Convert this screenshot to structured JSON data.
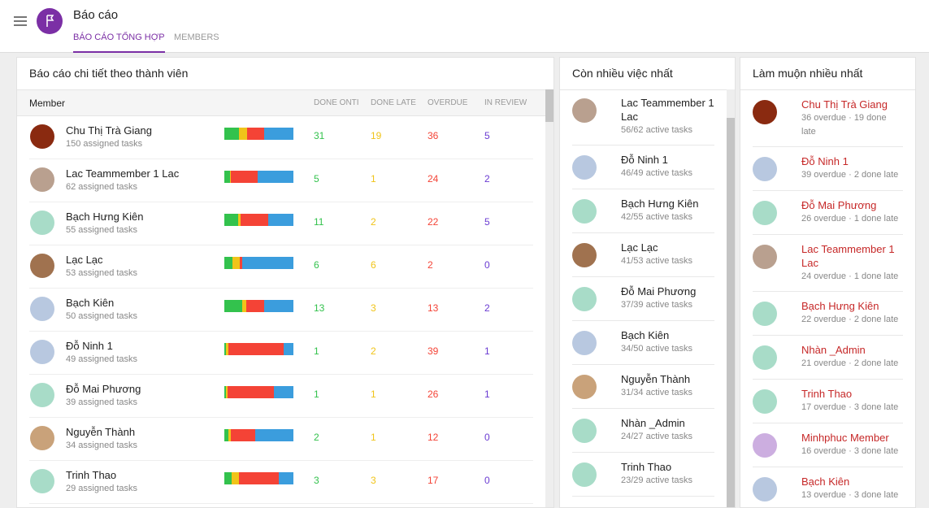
{
  "header": {
    "title": "Báo cáo",
    "tabs": [
      "BÁO CÁO TỔNG HỢP",
      "MEMBERS"
    ]
  },
  "detail": {
    "title": "Báo cáo chi tiết theo thành viên",
    "columns": [
      "Member",
      "DONE ONTI",
      "DONE LATE",
      "OVERDUE",
      "IN REVIEW"
    ],
    "rows": [
      {
        "name": "Chu Thị Trà Giang",
        "tasks": {
          "value": 150,
          "label": "150 assigned tasks"
        },
        "done_on_time": 31,
        "done_late": 19,
        "overdue": 36,
        "in_review": 5
      },
      {
        "name": "Lac Teammember 1 Lac",
        "tasks": {
          "value": 62,
          "label": "62 assigned tasks"
        },
        "done_on_time": 5,
        "done_late": 1,
        "overdue": 24,
        "in_review": 2
      },
      {
        "name": "Bạch Hưng Kiên",
        "tasks": {
          "value": 55,
          "label": "55 assigned tasks"
        },
        "done_on_time": 11,
        "done_late": 2,
        "overdue": 22,
        "in_review": 5
      },
      {
        "name": "Lạc Lạc",
        "tasks": {
          "value": 53,
          "label": "53 assigned tasks"
        },
        "done_on_time": 6,
        "done_late": 6,
        "overdue": 2,
        "in_review": 0
      },
      {
        "name": "Bạch Kiên",
        "tasks": {
          "value": 50,
          "label": "50 assigned tasks"
        },
        "done_on_time": 13,
        "done_late": 3,
        "overdue": 13,
        "in_review": 2
      },
      {
        "name": "Đỗ Ninh 1",
        "tasks": {
          "value": 49,
          "label": "49 assigned tasks"
        },
        "done_on_time": 1,
        "done_late": 2,
        "overdue": 39,
        "in_review": 1
      },
      {
        "name": "Đỗ Mai Phương",
        "tasks": {
          "value": 39,
          "label": "39 assigned tasks"
        },
        "done_on_time": 1,
        "done_late": 1,
        "overdue": 26,
        "in_review": 1
      },
      {
        "name": "Nguyễn Thành",
        "tasks": {
          "value": 34,
          "label": "34 assigned tasks"
        },
        "done_on_time": 2,
        "done_late": 1,
        "overdue": 12,
        "in_review": 0
      },
      {
        "name": "Trinh Thao",
        "tasks": {
          "value": 29,
          "label": "29 assigned tasks"
        },
        "done_on_time": 3,
        "done_late": 3,
        "overdue": 17,
        "in_review": 0
      }
    ]
  },
  "most_work": {
    "title": "Còn nhiều việc nhất",
    "items": [
      {
        "name": "Lac Teammember 1 Lac",
        "info": "56/62 active tasks"
      },
      {
        "name": "Đỗ Ninh 1",
        "info": "46/49 active tasks"
      },
      {
        "name": "Bạch Hưng Kiên",
        "info": "42/55 active tasks"
      },
      {
        "name": "Lạc Lạc",
        "info": "41/53 active tasks"
      },
      {
        "name": "Đỗ Mai Phương",
        "info": "37/39 active tasks"
      },
      {
        "name": "Bạch Kiên",
        "info": "34/50 active tasks"
      },
      {
        "name": "Nguyễn Thành",
        "info": "31/34 active tasks"
      },
      {
        "name": "Nhàn _Admin",
        "info": "24/27 active tasks"
      },
      {
        "name": "Trinh Thao",
        "info": "23/29 active tasks"
      }
    ]
  },
  "most_late": {
    "title": "Làm muộn nhiều nhất",
    "items": [
      {
        "name": "Chu Thị Trà Giang",
        "info": "36 overdue · 19 done late"
      },
      {
        "name": "Đỗ Ninh 1",
        "info": "39 overdue · 2 done late"
      },
      {
        "name": "Đỗ Mai Phương",
        "info": "26 overdue · 1 done late"
      },
      {
        "name": "Lac Teammember 1 Lac",
        "info": "24 overdue · 1 done late"
      },
      {
        "name": "Bạch Hưng Kiên",
        "info": "22 overdue · 2 done late"
      },
      {
        "name": "Nhàn _Admin",
        "info": "21 overdue · 2 done late"
      },
      {
        "name": "Trinh Thao",
        "info": "17 overdue · 3 done late"
      },
      {
        "name": "Minhphuc Member",
        "info": "16 overdue · 3 done late"
      },
      {
        "name": "Bạch Kiên",
        "info": "13 overdue · 3 done late"
      }
    ]
  }
}
